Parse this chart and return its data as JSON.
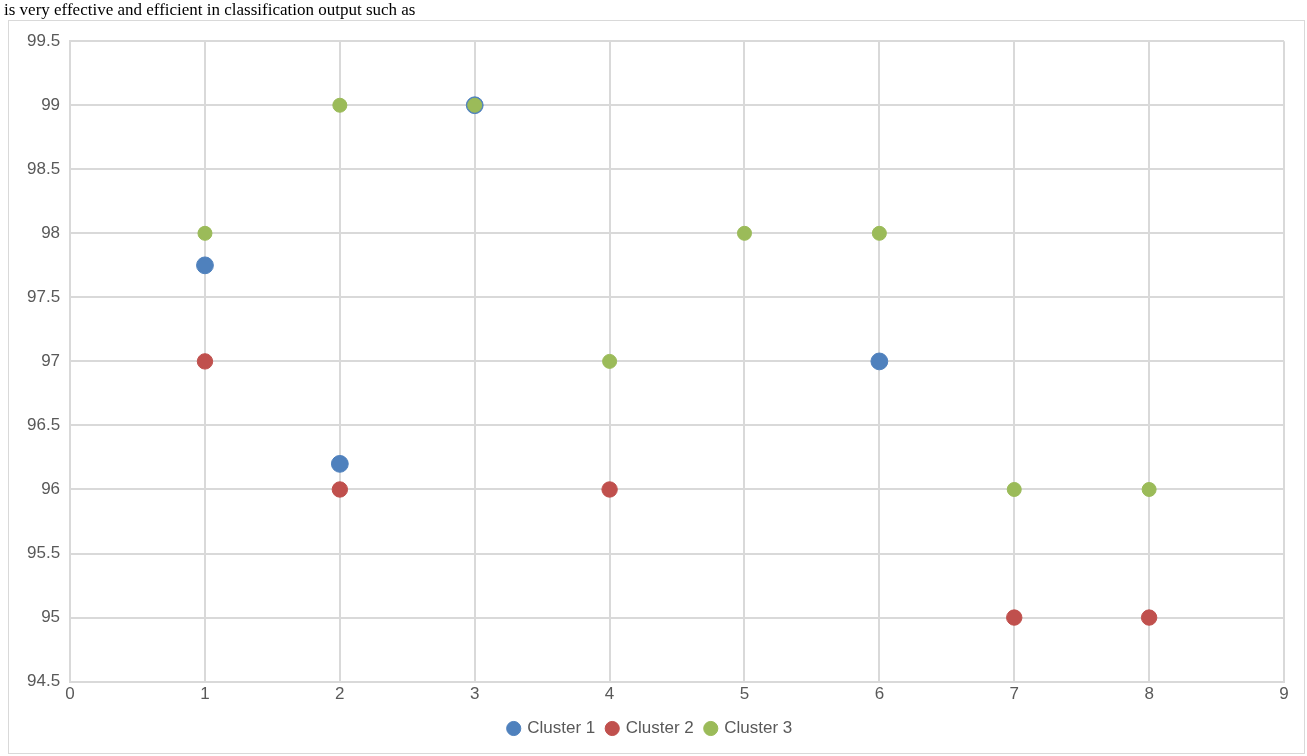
{
  "chart_data": {
    "type": "scatter",
    "annotations": [
      "is very effective and efficient in classification output such as"
    ],
    "series": [
      {
        "name": "Cluster 1",
        "color": "#4f81bd",
        "x": [
          1,
          2,
          3,
          6
        ],
        "values": [
          97.75,
          96.2,
          99,
          97
        ]
      },
      {
        "name": "Cluster 2",
        "color": "#c0504d",
        "x": [
          1,
          2,
          4,
          7,
          8
        ],
        "values": [
          97,
          96,
          96,
          95,
          95
        ]
      },
      {
        "name": "Cluster 3",
        "color": "#9bbb59",
        "x": [
          1,
          2,
          3,
          4,
          5,
          6,
          7,
          8
        ],
        "values": [
          98,
          99,
          99,
          97,
          98,
          98,
          96,
          96
        ]
      }
    ],
    "xlim": [
      0,
      9
    ],
    "xticks": [
      0,
      1,
      2,
      3,
      4,
      5,
      6,
      7,
      8,
      9
    ],
    "ylim": [
      94.5,
      99.5
    ],
    "yticks": [
      94.5,
      95,
      95.5,
      96,
      96.5,
      97,
      97.5,
      98,
      98.5,
      99,
      99.5
    ],
    "grid": true,
    "legend": "bottom",
    "marker": "circle"
  }
}
